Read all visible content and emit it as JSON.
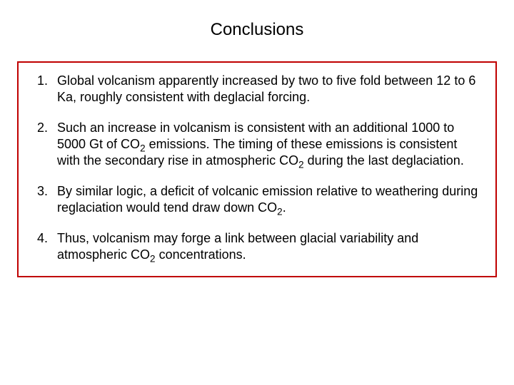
{
  "slide": {
    "title": "Conclusions",
    "border_color": "#c00000",
    "title_fontsize": 24,
    "body_fontsize": 18,
    "text_color": "#000000",
    "background_color": "#ffffff",
    "items": [
      {
        "segments": [
          {
            "text": "Global volcanism apparently increased by two to five fold between 12 to 6 Ka, roughly consistent with deglacial forcing."
          }
        ]
      },
      {
        "segments": [
          {
            "text": "Such an increase in volcanism is consistent with an additional 1000 to 5000 Gt of CO"
          },
          {
            "text": "2",
            "sub": true
          },
          {
            "text": " emissions.  The timing of these emissions is consistent with the secondary rise in atmospheric CO"
          },
          {
            "text": "2",
            "sub": true
          },
          {
            "text": " during the last deglaciation."
          }
        ]
      },
      {
        "segments": [
          {
            "text": "By similar logic, a deficit of volcanic emission relative to weathering during reglaciation would tend draw down CO"
          },
          {
            "text": "2",
            "sub": true
          },
          {
            "text": "."
          }
        ]
      },
      {
        "segments": [
          {
            "text": "Thus, volcanism may forge a link between glacial variability and atmospheric CO"
          },
          {
            "text": "2",
            "sub": true
          },
          {
            "text": " concentrations."
          }
        ]
      }
    ]
  }
}
